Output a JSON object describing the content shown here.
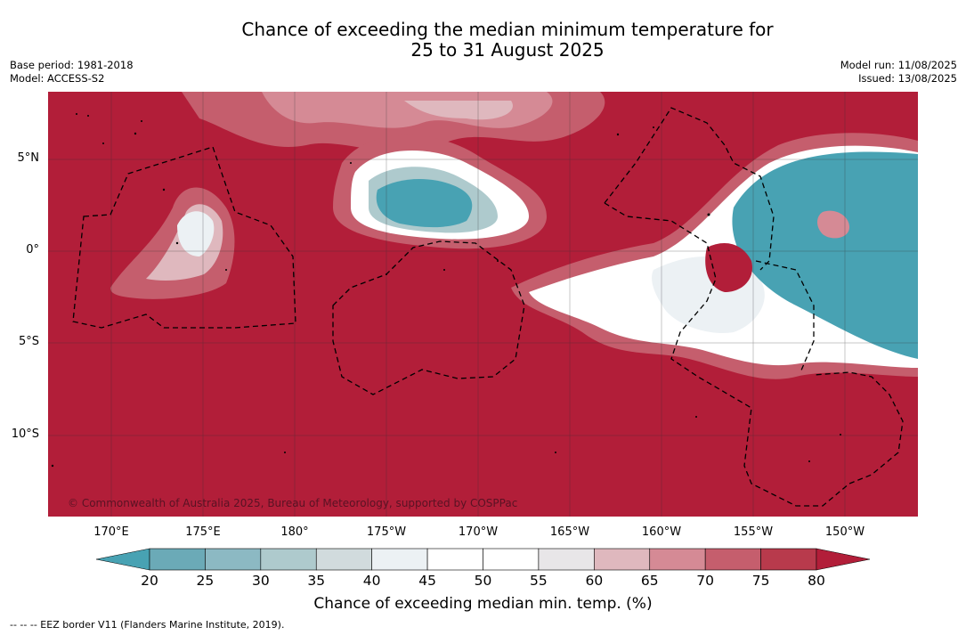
{
  "title": {
    "line1": "Chance of exceeding the median minimum temperature for",
    "line2": "25 to 31 August 2025"
  },
  "meta": {
    "base_period": "Base period: 1981-2018",
    "model": "Model: ACCESS-S2",
    "model_run": "Model run: 11/08/2025",
    "issued": "Issued: 13/08/2025"
  },
  "map": {
    "credit": "© Commonwealth of Australia 2025, Bureau of Meteorology, supported by COSPPac",
    "lat_labels": [
      "5°N",
      "0°",
      "5°S",
      "10°S"
    ],
    "lon_labels": [
      "170°E",
      "175°E",
      "180°",
      "175°W",
      "170°W",
      "165°W",
      "160°W",
      "155°W",
      "150°W"
    ],
    "background_color": "#b21e39"
  },
  "colorbar": {
    "ticks": [
      "20",
      "25",
      "30",
      "35",
      "40",
      "45",
      "50",
      "55",
      "60",
      "65",
      "70",
      "75",
      "80"
    ],
    "colors": [
      "#48a2b3",
      "#6baab7",
      "#8cb9c3",
      "#aecacd",
      "#d1dbdd",
      "#ecf1f4",
      "#ffffff",
      "#ffffff",
      "#e8e6e8",
      "#dfb8be",
      "#d58a95",
      "#c55e6d",
      "#b83a4c",
      "#b21e39"
    ],
    "label": "Chance of exceeding median min. temp. (%)"
  },
  "legend": {
    "eez": "--  --  -- EEZ border V11 (Flanders Marine Institute, 2019)."
  }
}
